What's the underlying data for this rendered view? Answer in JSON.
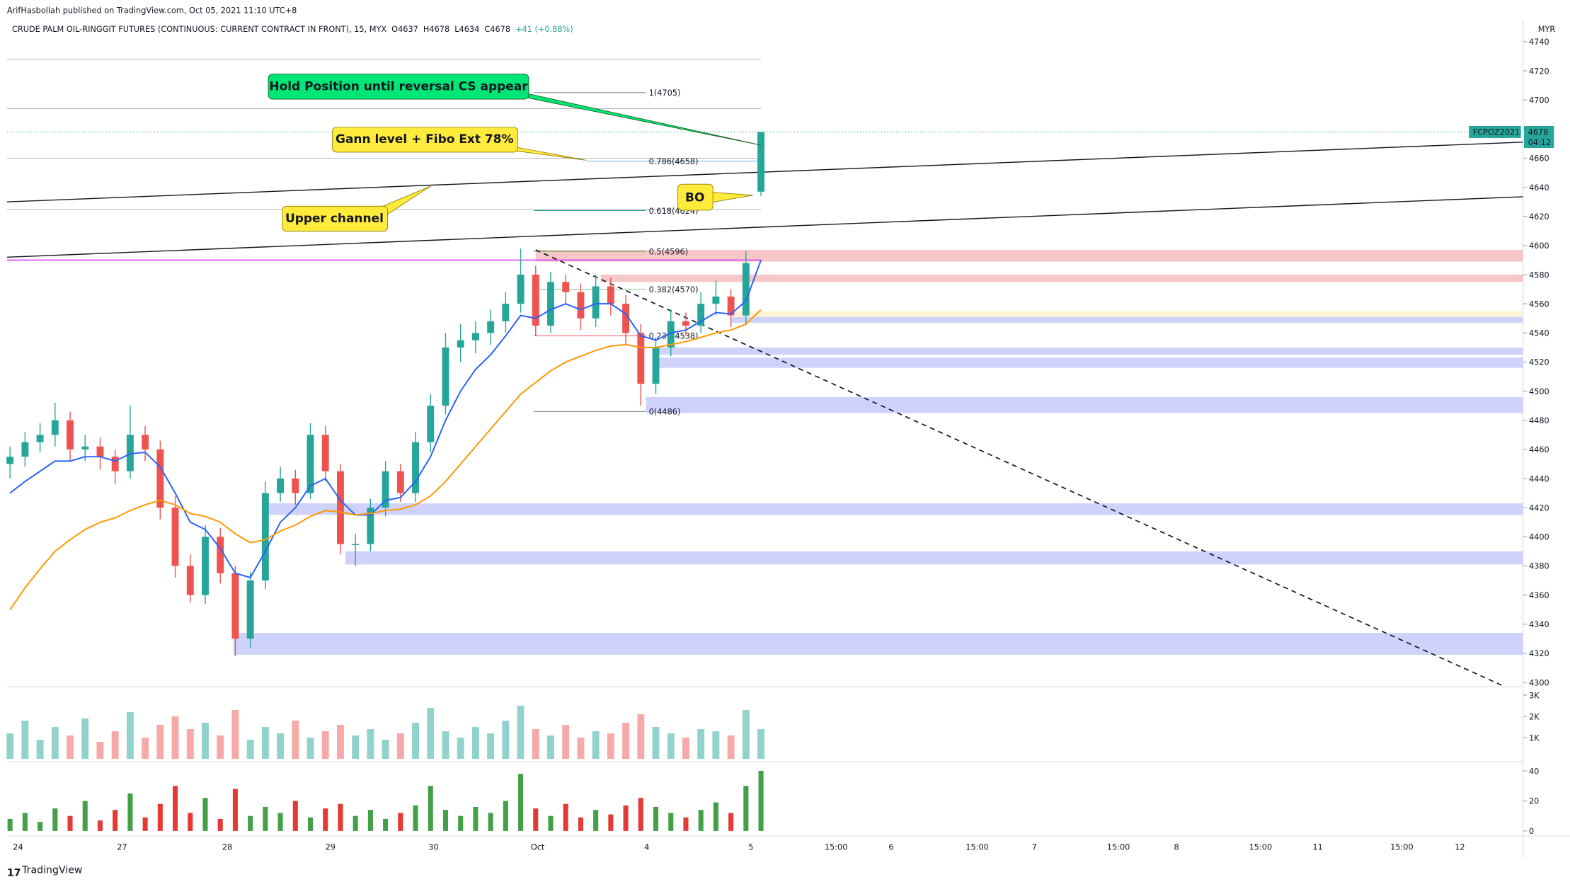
{
  "header": {
    "published": "ArifHasbollah published on TradingView.com, Oct 05, 2021 11:10 UTC+8",
    "symbol": "CRUDE PALM OIL-RINGGIT FUTURES (CONTINUOUS: CURRENT CONTRACT IN FRONT), 15, MYX",
    "ohlc": [
      "O4637",
      "H4678",
      "L4634",
      "C4678",
      "+41 (+0.88%)"
    ],
    "currency": "MYR",
    "footer": "TradingView"
  },
  "chart_data": {
    "type": "candlestick",
    "ylim": [
      4297,
      4748
    ],
    "yticks": [
      4300,
      4320,
      4340,
      4360,
      4380,
      4400,
      4420,
      4440,
      4460,
      4480,
      4500,
      4520,
      4540,
      4560,
      4580,
      4600,
      4620,
      4640,
      4660,
      4680,
      4700,
      4720,
      4740
    ],
    "up_color": "#26a69a",
    "down_color": "#ef5350",
    "time_labels": [
      "24",
      "27",
      "28",
      "29",
      "30",
      "Oct",
      "4",
      "5",
      "15:00",
      "6",
      "15:00",
      "7",
      "15:00",
      "8",
      "15:00",
      "11",
      "15:00",
      "12"
    ],
    "candles": [
      [
        4450,
        4462,
        4440,
        4455
      ],
      [
        4455,
        4472,
        4448,
        4465
      ],
      [
        4465,
        4478,
        4458,
        4470
      ],
      [
        4470,
        4492,
        4462,
        4480
      ],
      [
        4480,
        4486,
        4452,
        4460
      ],
      [
        4460,
        4470,
        4452,
        4462
      ],
      [
        4462,
        4468,
        4446,
        4455
      ],
      [
        4455,
        4460,
        4436,
        4445
      ],
      [
        4445,
        4490,
        4440,
        4470
      ],
      [
        4470,
        4476,
        4452,
        4460
      ],
      [
        4460,
        4466,
        4412,
        4420
      ],
      [
        4420,
        4428,
        4372,
        4380
      ],
      [
        4380,
        4388,
        4355,
        4360
      ],
      [
        4360,
        4408,
        4354,
        4400
      ],
      [
        4400,
        4406,
        4368,
        4375
      ],
      [
        4375,
        4380,
        4318,
        4330
      ],
      [
        4330,
        4376,
        4324,
        4370
      ],
      [
        4370,
        4438,
        4364,
        4430
      ],
      [
        4430,
        4448,
        4424,
        4440
      ],
      [
        4440,
        4446,
        4422,
        4430
      ],
      [
        4430,
        4478,
        4426,
        4470
      ],
      [
        4470,
        4476,
        4438,
        4445
      ],
      [
        4445,
        4450,
        4388,
        4395
      ],
      [
        4395,
        4402,
        4380,
        4395
      ],
      [
        4395,
        4426,
        4390,
        4420
      ],
      [
        4420,
        4452,
        4414,
        4445
      ],
      [
        4445,
        4450,
        4424,
        4430
      ],
      [
        4430,
        4472,
        4424,
        4465
      ],
      [
        4465,
        4498,
        4458,
        4490
      ],
      [
        4490,
        4540,
        4484,
        4530
      ],
      [
        4530,
        4546,
        4520,
        4535
      ],
      [
        4535,
        4548,
        4526,
        4540
      ],
      [
        4540,
        4556,
        4532,
        4548
      ],
      [
        4548,
        4568,
        4540,
        4560
      ],
      [
        4560,
        4598,
        4554,
        4580
      ],
      [
        4580,
        4586,
        4538,
        4545
      ],
      [
        4545,
        4582,
        4540,
        4575
      ],
      [
        4575,
        4580,
        4560,
        4568
      ],
      [
        4568,
        4574,
        4542,
        4550
      ],
      [
        4550,
        4580,
        4544,
        4572
      ],
      [
        4572,
        4578,
        4552,
        4560
      ],
      [
        4560,
        4566,
        4532,
        4540
      ],
      [
        4540,
        4546,
        4490,
        4505
      ],
      [
        4505,
        4536,
        4498,
        4530
      ],
      [
        4530,
        4556,
        4524,
        4548
      ],
      [
        4548,
        4554,
        4538,
        4545
      ],
      [
        4545,
        4568,
        4540,
        4560
      ],
      [
        4560,
        4576,
        4552,
        4565
      ],
      [
        4565,
        4570,
        4544,
        4552
      ],
      [
        4552,
        4596,
        4546,
        4588
      ],
      [
        4637,
        4678,
        4634,
        4678
      ]
    ],
    "series": [
      {
        "color": "#2962ff",
        "values": [
          4430,
          4438,
          4445,
          4452,
          4452,
          4455,
          4455,
          4452,
          4457,
          4458,
          4448,
          4430,
          4410,
          4405,
          4392,
          4375,
          4372,
          4390,
          4410,
          4420,
          4435,
          4440,
          4425,
          4415,
          4415,
          4425,
          4427,
          4438,
          4455,
          4480,
          4500,
          4515,
          4525,
          4538,
          4552,
          4550,
          4556,
          4560,
          4556,
          4560,
          4560,
          4553,
          4538,
          4535,
          4540,
          4542,
          4548,
          4554,
          4553,
          4562,
          4590
        ]
      },
      {
        "color": "#ff9800",
        "values": [
          4350,
          4365,
          4378,
          4390,
          4398,
          4405,
          4410,
          4413,
          4418,
          4422,
          4425,
          4422,
          4416,
          4414,
          4410,
          4402,
          4396,
          4398,
          4404,
          4408,
          4414,
          4418,
          4417,
          4415,
          4416,
          4418,
          4419,
          4422,
          4428,
          4438,
          4450,
          4462,
          4474,
          4486,
          4498,
          4506,
          4514,
          4520,
          4524,
          4528,
          4531,
          4532,
          4530,
          4530,
          4532,
          4534,
          4537,
          4540,
          4542,
          4546,
          4556
        ]
      }
    ],
    "zones": [
      {
        "from": 4597,
        "to": 4589,
        "color": "#f7c6c7"
      },
      {
        "from": 4580,
        "to": 4575,
        "color": "#f7c6c7"
      },
      {
        "from": 4555,
        "to": 4551,
        "color": "#fff5d6"
      },
      {
        "from": 4551,
        "to": 4547,
        "color": "#cfd3fb"
      },
      {
        "from": 4530,
        "to": 4525,
        "color": "#cfd3fb"
      },
      {
        "from": 4523,
        "to": 4516,
        "color": "#cfd3fb"
      },
      {
        "from": 4496,
        "to": 4485,
        "color": "#cfd3fb"
      },
      {
        "from": 4423,
        "to": 4415,
        "color": "#cfd3fb"
      },
      {
        "from": 4390,
        "to": 4381,
        "color": "#cfd3fb"
      },
      {
        "from": 4334,
        "to": 4319,
        "color": "#cfd3fb"
      }
    ],
    "levels": [
      {
        "price": 4728,
        "color": "#b2b5be"
      },
      {
        "price": 4694,
        "color": "#b2b5be"
      },
      {
        "price": 4660,
        "color": "#b2b5be"
      },
      {
        "price": 4625,
        "color": "#b2b5be"
      },
      {
        "price": 4590,
        "color": "#e040fb"
      }
    ],
    "channel": [
      [
        4630,
        4671
      ],
      [
        4592,
        4633.5
      ]
    ],
    "trend": [
      4597,
      4298
    ],
    "fib": [
      {
        "label": "1(4705)",
        "price": 4705,
        "color": "#787b86"
      },
      {
        "label": "0.786(4658)",
        "price": 4658,
        "color": "#64b5f6"
      },
      {
        "label": "0.618(4624)",
        "price": 4624,
        "color": "#089981"
      },
      {
        "label": "0.5(4596)",
        "price": 4596,
        "color": "#4caf50"
      },
      {
        "label": "0.382(4570)",
        "price": 4570,
        "color": "#81c784"
      },
      {
        "label": "0.236(4538)",
        "price": 4538,
        "color": "#f23645"
      },
      {
        "label": "0(4486)",
        "price": 4486,
        "color": "#787b86"
      }
    ],
    "last": {
      "name": "FCPOZ2021",
      "price": 4678,
      "countdown": "04:12"
    },
    "callouts": [
      "Hold Position until reversal CS appear",
      "Gann level + Fibo Ext 78%",
      "Upper channel",
      "BO"
    ],
    "volume": {
      "ylim": [
        0,
        3300
      ],
      "yticks": [
        {
          "value": 1000,
          "label": "1K"
        },
        {
          "value": 2000,
          "label": "2K"
        },
        {
          "value": 3000,
          "label": "3K"
        }
      ],
      "values": [
        1200,
        1800,
        900,
        1500,
        1100,
        1900,
        800,
        1300,
        2200,
        1000,
        1600,
        2000,
        1400,
        1700,
        1100,
        2300,
        900,
        1500,
        1200,
        1800,
        1000,
        1300,
        1600,
        1100,
        1400,
        900,
        1200,
        1700,
        2400,
        1300,
        1000,
        1500,
        1200,
        1800,
        2500,
        1400,
        1100,
        1600,
        1000,
        1300,
        1200,
        1700,
        2100,
        1500,
        1200,
        1000,
        1400,
        1300,
        1100,
        2300,
        1400
      ]
    },
    "oscillator": {
      "ylim": [
        0,
        44
      ],
      "yticks": [
        0,
        20,
        40
      ],
      "values": [
        8,
        12,
        6,
        15,
        10,
        20,
        7,
        14,
        25,
        9,
        18,
        30,
        12,
        22,
        8,
        28,
        10,
        16,
        12,
        20,
        9,
        15,
        18,
        10,
        14,
        8,
        12,
        17,
        30,
        14,
        10,
        16,
        12,
        20,
        38,
        15,
        10,
        18,
        9,
        14,
        11,
        17,
        22,
        16,
        12,
        9,
        14,
        19,
        12,
        30,
        40
      ]
    }
  }
}
